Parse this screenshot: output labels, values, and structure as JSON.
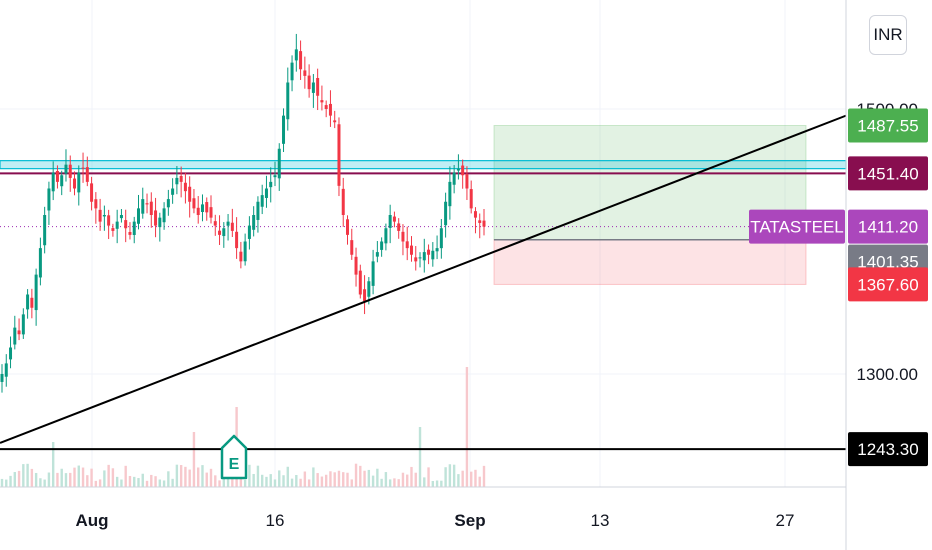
{
  "currency_button": "INR",
  "chart_data": {
    "type": "candlestick",
    "symbol": "TATASTEEL",
    "x_ticks": [
      "Aug",
      "16",
      "Sep",
      "13",
      "27"
    ],
    "y_ticks": [
      "1500.00",
      "1300.00"
    ],
    "price_labels": [
      {
        "text": "1487.55",
        "price": 1487.55,
        "color": "#4caf50",
        "text_color": "#ffffff"
      },
      {
        "text": "1451.40",
        "price": 1451.4,
        "color": "#880e4f",
        "text_color": "#ffffff"
      },
      {
        "text": "1411.20",
        "price": 1411.2,
        "color": "#ab47bc",
        "text_color": "#ffffff"
      },
      {
        "text": "1401.35",
        "price": 1401.35,
        "color": "#787b86",
        "text_color": "#ffffff"
      },
      {
        "text": "1367.60",
        "price": 1367.6,
        "color": "#f23645",
        "text_color": "#ffffff"
      },
      {
        "text": "1243.30",
        "price": 1243.3,
        "color": "#000000",
        "text_color": "#ffffff"
      }
    ],
    "symbol_label": {
      "text": "TATASTEEL",
      "color": "#ab47bc"
    },
    "horizontal_levels": [
      {
        "price": 1458,
        "color": "#00bcd4",
        "style": "band"
      },
      {
        "price": 1451.4,
        "color": "#880e4f",
        "style": "solid"
      },
      {
        "price": 1411.2,
        "color": "#9c27b0",
        "style": "dotted"
      },
      {
        "price": 1243.3,
        "color": "#000000",
        "style": "solid"
      }
    ],
    "position_tool": {
      "entry": 1401.35,
      "target": 1487.55,
      "stop": 1367.6
    },
    "trendline": {
      "from_price": 1248,
      "to_price": 1495
    },
    "events": [
      {
        "label": "E",
        "color": "#089981"
      }
    ],
    "colors": {
      "up": "#089981",
      "down": "#f23645",
      "volume_up": "#bfe3d9",
      "volume_down": "#f7c8cc"
    },
    "close_series": [
      1300,
      1308,
      1320,
      1335,
      1330,
      1345,
      1360,
      1350,
      1375,
      1395,
      1420,
      1440,
      1452,
      1445,
      1450,
      1458,
      1448,
      1440,
      1452,
      1455,
      1445,
      1430,
      1425,
      1415,
      1420,
      1412,
      1408,
      1415,
      1420,
      1410,
      1405,
      1415,
      1425,
      1432,
      1428,
      1420,
      1412,
      1418,
      1425,
      1432,
      1440,
      1448,
      1445,
      1438,
      1430,
      1425,
      1420,
      1428,
      1422,
      1418,
      1412,
      1405,
      1410,
      1415,
      1408,
      1395,
      1385,
      1400,
      1412,
      1420,
      1430,
      1435,
      1440,
      1445,
      1450,
      1470,
      1495,
      1520,
      1535,
      1545,
      1530,
      1525,
      1515,
      1520,
      1510,
      1505,
      1500,
      1495,
      1490,
      1442,
      1420,
      1405,
      1390,
      1375,
      1360,
      1355,
      1370,
      1385,
      1392,
      1400,
      1410,
      1420,
      1415,
      1408,
      1400,
      1395,
      1390,
      1385,
      1388,
      1392,
      1390,
      1393,
      1395,
      1410,
      1430,
      1445,
      1452,
      1455,
      1450,
      1440,
      1425,
      1418,
      1414,
      1411.2
    ]
  }
}
